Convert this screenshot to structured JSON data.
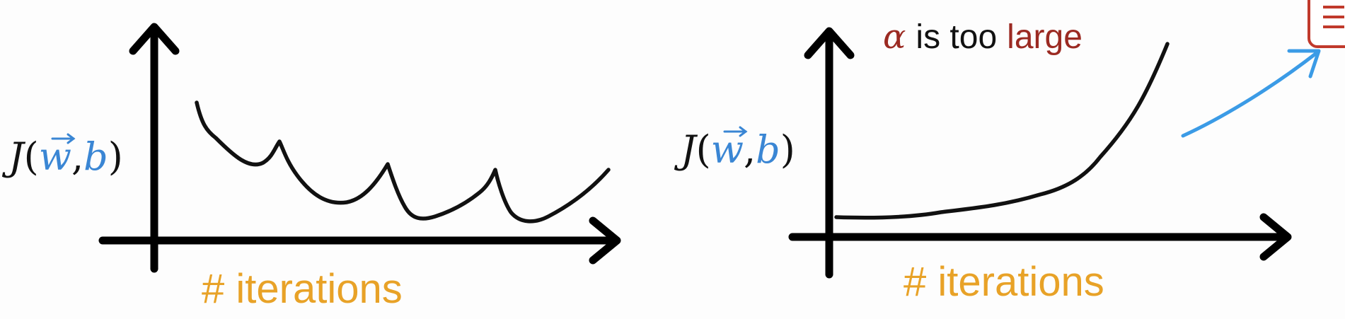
{
  "colors": {
    "black": "#111111",
    "blue": "#3a86d4",
    "orange": "#e8a227",
    "darkred": "#9b2a22",
    "annotation_blue": "#3b9be6",
    "icon_red": "#c0392b"
  },
  "left_plot": {
    "ylabel": {
      "J": "J",
      "open": "(",
      "w": "w",
      "comma": ",",
      "b": "b",
      "close": ")"
    },
    "xlabel": "# iterations"
  },
  "right_plot": {
    "title": {
      "alpha": "α",
      "middle": "is too",
      "large": "large"
    },
    "ylabel": {
      "J": "J",
      "open": "(",
      "w": "w",
      "comma": ",",
      "b": "b",
      "close": ")"
    },
    "xlabel": "# iterations"
  },
  "icons": {
    "corner": "document-icon",
    "annotation": "arrow-icon"
  }
}
